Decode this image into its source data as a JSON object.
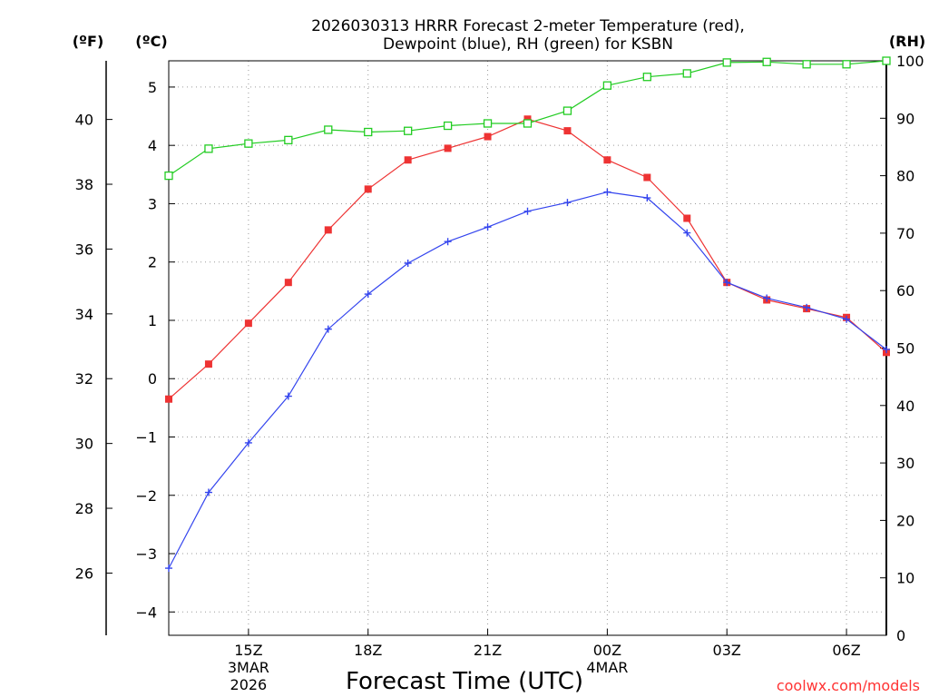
{
  "chart_data": {
    "type": "line",
    "title_line1": "2026030313 HRRR Forecast 2-meter Temperature (red),",
    "title_line2": "Dewpoint (blue), RH (green) for KSBN",
    "xlabel": "Forecast Time (UTC)",
    "credit": "coolwx.com/models",
    "units": {
      "fahrenheit": "(ºF)",
      "celsius": "(ºC)",
      "rh": "(RH)"
    },
    "x_hours": [
      13,
      14,
      15,
      16,
      17,
      18,
      19,
      20,
      21,
      22,
      23,
      24,
      25,
      26,
      27,
      28,
      29,
      30,
      31
    ],
    "x_ticks": [
      {
        "hour": 15,
        "lines": [
          "15Z",
          "3MAR",
          "2026"
        ]
      },
      {
        "hour": 18,
        "lines": [
          "18Z"
        ]
      },
      {
        "hour": 21,
        "lines": [
          "21Z"
        ]
      },
      {
        "hour": 24,
        "lines": [
          "00Z",
          "4MAR"
        ]
      },
      {
        "hour": 27,
        "lines": [
          "03Z"
        ]
      },
      {
        "hour": 30,
        "lines": [
          "06Z"
        ]
      }
    ],
    "xlim": [
      13,
      31
    ],
    "ylim_celsius": [
      -4.4,
      5.45
    ],
    "ylim_rh": [
      0,
      100
    ],
    "celsius_ticks": [
      "5",
      "4",
      "3",
      "2",
      "1",
      "0",
      "−1",
      "−2",
      "−3",
      "−4"
    ],
    "fahrenheit_ticks": [
      "40",
      "38",
      "36",
      "34",
      "32",
      "30",
      "28",
      "26"
    ],
    "rh_ticks": [
      "100",
      "90",
      "80",
      "70",
      "60",
      "50",
      "40",
      "30",
      "20",
      "10",
      "0"
    ],
    "series": [
      {
        "name": "2-meter Temperature",
        "unit": "C",
        "color": "#ee3333",
        "marker": "filled-square",
        "values": [
          -0.35,
          0.25,
          0.95,
          1.65,
          2.55,
          3.25,
          3.75,
          3.95,
          4.15,
          4.45,
          4.25,
          3.75,
          3.45,
          2.75,
          1.65,
          1.35,
          1.2,
          1.05,
          0.45
        ]
      },
      {
        "name": "Dewpoint",
        "unit": "C",
        "color": "#3344ee",
        "marker": "plus",
        "values": [
          -3.25,
          -1.95,
          -1.1,
          -0.3,
          0.85,
          1.45,
          1.98,
          2.35,
          2.6,
          2.87,
          3.02,
          3.2,
          3.1,
          2.5,
          1.65,
          1.38,
          1.22,
          1.02,
          0.5
        ]
      },
      {
        "name": "RH",
        "unit": "%",
        "color": "#22cc22",
        "marker": "open-square",
        "values": [
          80,
          84.7,
          85.6,
          86.2,
          88,
          87.6,
          87.8,
          88.7,
          89.1,
          89.1,
          91.3,
          95.7,
          97.2,
          97.8,
          99.7,
          99.8,
          99.4,
          99.4,
          100
        ]
      }
    ]
  }
}
